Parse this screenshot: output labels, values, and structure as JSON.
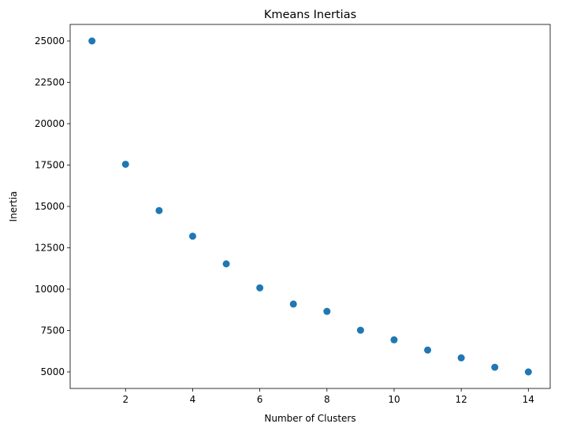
{
  "chart_data": {
    "type": "scatter",
    "title": "Kmeans Inertias",
    "xlabel": "Number of Clusters",
    "ylabel": "Inertia",
    "x": [
      1,
      2,
      3,
      4,
      5,
      6,
      7,
      8,
      9,
      10,
      11,
      12,
      13,
      14
    ],
    "y": [
      25000,
      17550,
      14750,
      13200,
      11530,
      10080,
      9100,
      8660,
      7520,
      6940,
      6320,
      5850,
      5280,
      5000
    ],
    "xlim": [
      0.35,
      14.65
    ],
    "ylim": [
      4000,
      26000
    ],
    "xticks": [
      2,
      4,
      6,
      8,
      10,
      12,
      14
    ],
    "xtick_labels": [
      "2",
      "4",
      "6",
      "8",
      "10",
      "12",
      "14"
    ],
    "yticks": [
      5000,
      7500,
      10000,
      12500,
      15000,
      17500,
      20000,
      22500,
      25000
    ],
    "ytick_labels": [
      "5000",
      "7500",
      "10000",
      "12500",
      "15000",
      "17500",
      "20000",
      "22500",
      "25000"
    ],
    "grid": false,
    "legend": "none",
    "marker_color": "#1f77b4"
  }
}
